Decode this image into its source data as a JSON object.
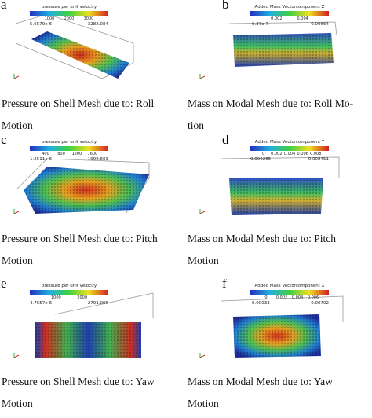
{
  "panels": [
    {
      "letter": "a",
      "colorbar": {
        "title": "pressure per unit velocity",
        "ticks": [
          "1000",
          "2000",
          "3000"
        ],
        "min": "5.6579e-6",
        "max": "3282.084"
      },
      "caption": [
        "Pressure on Shell Mesh due to:  Roll",
        "Motion"
      ]
    },
    {
      "letter": "b",
      "colorbar": {
        "title": "Added Mass Vectorcomponent Z",
        "ticks": [
          "0.002",
          "0.004"
        ],
        "min": "-6.37e-7",
        "max": "0.00664"
      },
      "caption": [
        "Mass on Modal Mesh due to: Roll Mo-",
        "tion"
      ]
    },
    {
      "letter": "c",
      "colorbar": {
        "title": "pressure per unit velocity",
        "ticks": [
          "400",
          "800",
          "1200",
          "1600"
        ],
        "min": "1.2511e-6",
        "max": "1999.603"
      },
      "caption": [
        "Pressure on Shell Mesh due to:  Pitch",
        "Motion"
      ]
    },
    {
      "letter": "d",
      "colorbar": {
        "title": "Added Mass Vectorcomponent Y",
        "ticks": [
          "0",
          "0.002",
          "0.004",
          "0.006",
          "0.008"
        ],
        "min": "0.000265",
        "max": "0.008451"
      },
      "caption": [
        "Mass on Modal Mesh due to: Pitch",
        "Motion"
      ]
    },
    {
      "letter": "e",
      "colorbar": {
        "title": "pressure per unit velocity",
        "ticks": [
          "1000",
          "2000"
        ],
        "min": "4.7557e-6",
        "max": "2793.006"
      },
      "caption": [
        "Pressure on Shell Mesh due to:  Yaw",
        "Motion"
      ]
    },
    {
      "letter": "f",
      "colorbar": {
        "title": "Added Mass Vectorcomponent X",
        "ticks": [
          "0",
          "0.002",
          "0.004",
          "0.006"
        ],
        "min": "-0.00033",
        "max": "0.00702"
      },
      "caption": [
        "Mass on Modal Mesh due to: Yaw",
        "Motion"
      ]
    }
  ]
}
